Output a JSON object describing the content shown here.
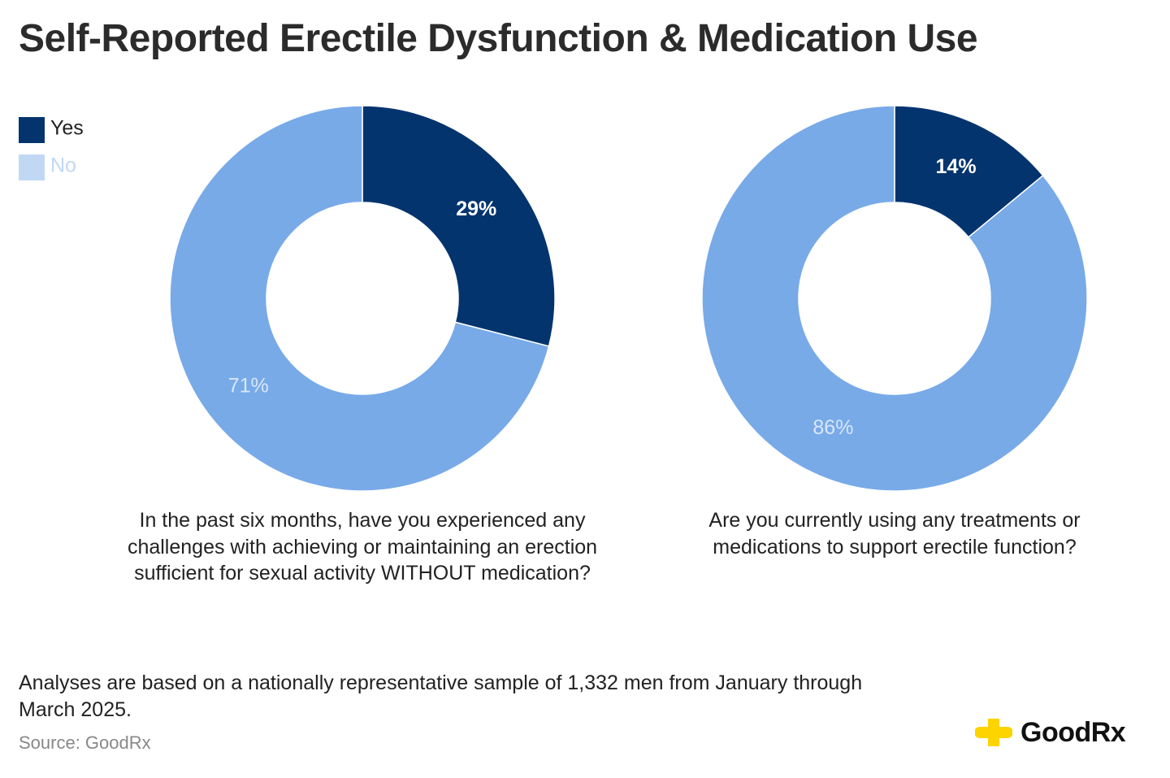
{
  "title": "Self-Reported Erectile Dysfunction & Medication Use",
  "chart_data": [
    {
      "type": "donut",
      "categories": [
        "Yes",
        "No"
      ],
      "values": [
        29,
        71
      ],
      "value_labels": [
        "29%",
        "71%"
      ],
      "colors": [
        "#03346e",
        "#78aae8"
      ],
      "caption": "In the past six months, have you experienced any challenges with achieving or maintaining an erection sufficient for sexual activity WITHOUT medication?"
    },
    {
      "type": "donut",
      "categories": [
        "Yes",
        "No"
      ],
      "values": [
        14,
        86
      ],
      "value_labels": [
        "14%",
        "86%"
      ],
      "colors": [
        "#03346e",
        "#78aae8"
      ],
      "caption": "Are you currently using any treatments or medications to support erectile function?"
    }
  ],
  "note": "Analyses are based on a nationally representative sample of 1,332 men from January through March 2025.",
  "source": "Source: GoodRx",
  "logo": "GoodRx"
}
